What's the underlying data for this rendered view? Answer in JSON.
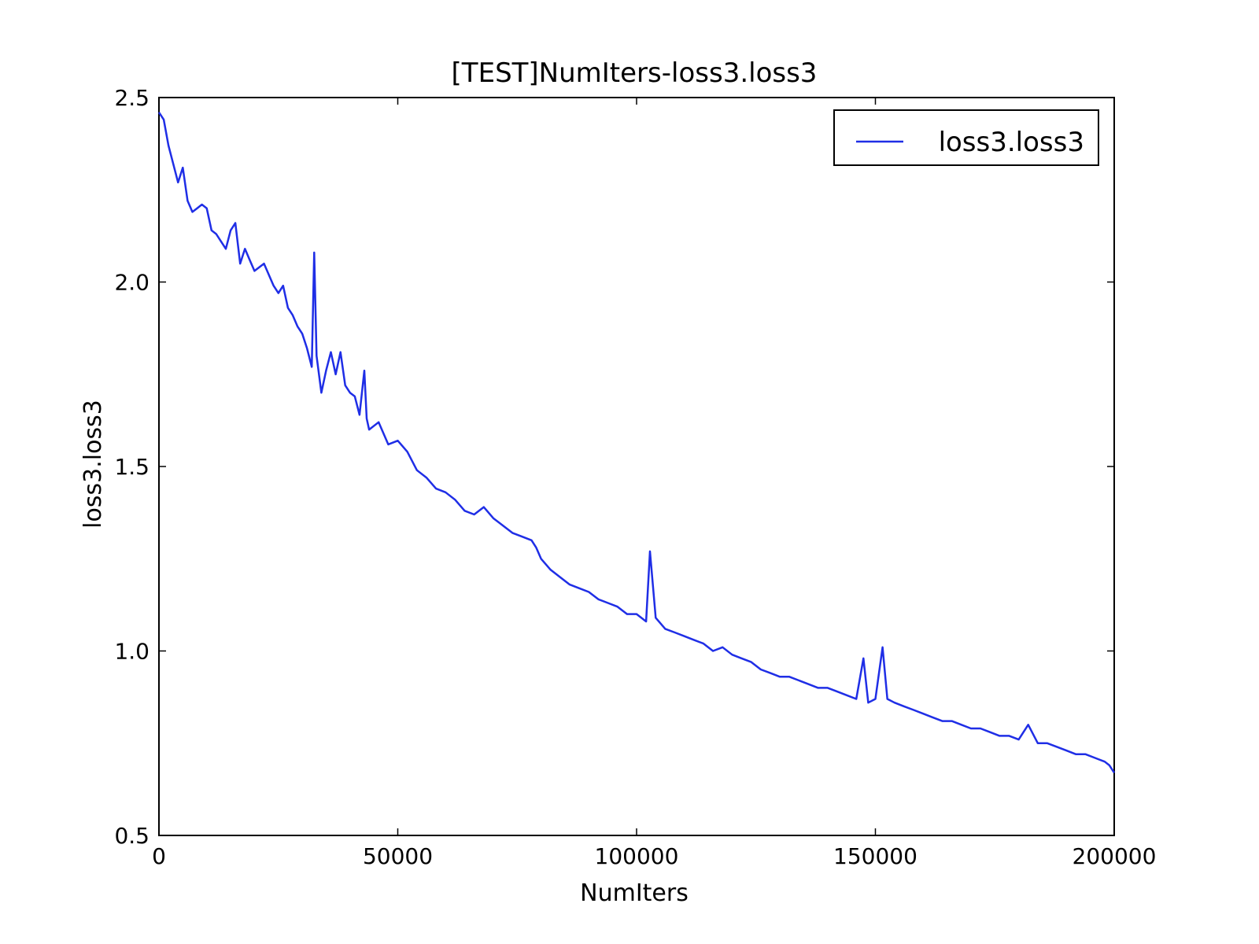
{
  "chart_data": {
    "type": "line",
    "title": "[TEST]NumIters-loss3.loss3",
    "xlabel": "NumIters",
    "ylabel": "loss3.loss3",
    "xlim": [
      0,
      200000
    ],
    "ylim": [
      0.5,
      2.5
    ],
    "xticks": [
      0,
      50000,
      100000,
      150000,
      200000
    ],
    "xtick_labels": [
      "0",
      "50000",
      "100000",
      "150000",
      "200000"
    ],
    "yticks": [
      0.5,
      1.0,
      1.5,
      2.0,
      2.5
    ],
    "ytick_labels": [
      "0.5",
      "1.0",
      "1.5",
      "2.0",
      "2.5"
    ],
    "grid": false,
    "legend": {
      "position": "top-right",
      "entries": [
        "loss3.loss3"
      ]
    },
    "series": [
      {
        "name": "loss3.loss3",
        "color": "#1f2ee6",
        "x": [
          0,
          1000,
          2000,
          3000,
          4000,
          5000,
          6000,
          7000,
          8000,
          9000,
          10000,
          11000,
          12000,
          13000,
          14000,
          15000,
          16000,
          17000,
          18000,
          19000,
          20000,
          22000,
          24000,
          25000,
          26000,
          27000,
          28000,
          29000,
          30000,
          31000,
          32000,
          32500,
          33000,
          34000,
          35000,
          36000,
          37000,
          38000,
          39000,
          40000,
          41000,
          42000,
          43000,
          43500,
          44000,
          46000,
          48000,
          50000,
          52000,
          54000,
          56000,
          58000,
          60000,
          62000,
          64000,
          66000,
          68000,
          70000,
          72000,
          74000,
          76000,
          78000,
          79000,
          80000,
          82000,
          84000,
          86000,
          88000,
          90000,
          92000,
          94000,
          96000,
          98000,
          100000,
          102000,
          102800,
          104000,
          106000,
          108000,
          110000,
          112000,
          114000,
          116000,
          118000,
          120000,
          122000,
          124000,
          126000,
          128000,
          130000,
          132000,
          134000,
          136000,
          138000,
          140000,
          142000,
          144000,
          146000,
          147500,
          148500,
          150000,
          151500,
          152500,
          154000,
          156000,
          158000,
          160000,
          162000,
          164000,
          166000,
          168000,
          170000,
          172000,
          174000,
          176000,
          178000,
          180000,
          182000,
          184000,
          186000,
          188000,
          190000,
          192000,
          194000,
          196000,
          198000,
          199000,
          200000
        ],
        "values": [
          2.46,
          2.44,
          2.37,
          2.32,
          2.27,
          2.31,
          2.22,
          2.19,
          2.2,
          2.21,
          2.2,
          2.14,
          2.13,
          2.11,
          2.09,
          2.14,
          2.16,
          2.05,
          2.09,
          2.06,
          2.03,
          2.05,
          1.99,
          1.97,
          1.99,
          1.93,
          1.91,
          1.88,
          1.86,
          1.82,
          1.77,
          2.08,
          1.8,
          1.7,
          1.76,
          1.81,
          1.75,
          1.81,
          1.72,
          1.7,
          1.69,
          1.64,
          1.76,
          1.63,
          1.6,
          1.62,
          1.56,
          1.57,
          1.54,
          1.49,
          1.47,
          1.44,
          1.43,
          1.41,
          1.38,
          1.37,
          1.39,
          1.36,
          1.34,
          1.32,
          1.31,
          1.3,
          1.28,
          1.25,
          1.22,
          1.2,
          1.18,
          1.17,
          1.16,
          1.14,
          1.13,
          1.12,
          1.1,
          1.1,
          1.08,
          1.27,
          1.09,
          1.06,
          1.05,
          1.04,
          1.03,
          1.02,
          1.0,
          1.01,
          0.99,
          0.98,
          0.97,
          0.95,
          0.94,
          0.93,
          0.93,
          0.92,
          0.91,
          0.9,
          0.9,
          0.89,
          0.88,
          0.87,
          0.98,
          0.86,
          0.87,
          1.01,
          0.87,
          0.86,
          0.85,
          0.84,
          0.83,
          0.82,
          0.81,
          0.81,
          0.8,
          0.79,
          0.79,
          0.78,
          0.77,
          0.77,
          0.76,
          0.8,
          0.75,
          0.75,
          0.74,
          0.73,
          0.72,
          0.72,
          0.71,
          0.7,
          0.69,
          0.67
        ]
      }
    ]
  }
}
